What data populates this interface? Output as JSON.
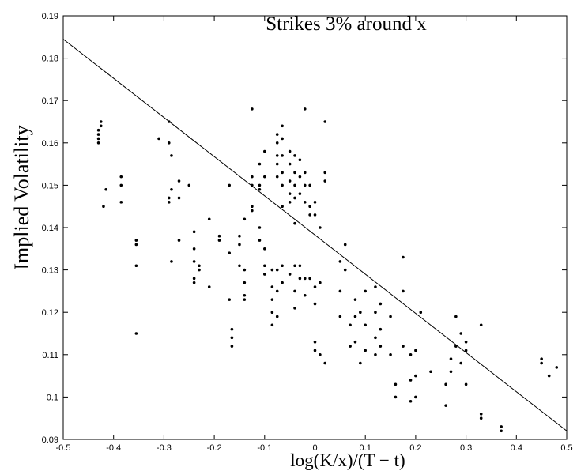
{
  "chart_data": {
    "type": "scatter",
    "title": "Strikes 3% around x",
    "x_label": "log(K/x)/(T − t)",
    "y_label": "Implied Volatility",
    "xlim": [
      -0.5,
      0.5
    ],
    "xticks": [
      -0.5,
      -0.4,
      -0.3,
      -0.2,
      -0.1,
      0,
      0.1,
      0.2,
      0.3,
      0.4,
      0.5
    ],
    "ylim": [
      0.09,
      0.19
    ],
    "yticks": [
      0.09,
      0.1,
      0.11,
      0.12,
      0.13,
      0.14,
      0.15,
      0.16,
      0.17,
      0.18,
      0.19
    ],
    "grid": false,
    "series": [
      {
        "type": "scatter",
        "color": "#000000",
        "x": [
          -0.43,
          -0.43,
          -0.43,
          -0.43,
          -0.425,
          -0.425,
          -0.42,
          -0.415,
          -0.385,
          -0.385,
          -0.385,
          -0.355,
          -0.355,
          -0.355,
          -0.355,
          -0.31,
          -0.29,
          -0.29,
          -0.29,
          -0.29,
          -0.285,
          -0.285,
          -0.285,
          -0.27,
          -0.27,
          -0.27,
          -0.25,
          -0.24,
          -0.24,
          -0.24,
          -0.24,
          -0.24,
          -0.23,
          -0.23,
          -0.21,
          -0.21,
          -0.19,
          -0.19,
          -0.17,
          -0.17,
          -0.17,
          -0.165,
          -0.165,
          -0.165,
          -0.15,
          -0.15,
          -0.15,
          -0.14,
          -0.14,
          -0.14,
          -0.14,
          -0.14,
          -0.125,
          -0.125,
          -0.125,
          -0.125,
          -0.125,
          -0.11,
          -0.11,
          -0.11,
          -0.11,
          -0.11,
          -0.1,
          -0.1,
          -0.1,
          -0.1,
          -0.1,
          -0.085,
          -0.085,
          -0.085,
          -0.085,
          -0.085,
          -0.075,
          -0.075,
          -0.075,
          -0.075,
          -0.075,
          -0.075,
          -0.075,
          -0.075,
          -0.065,
          -0.065,
          -0.065,
          -0.065,
          -0.065,
          -0.065,
          -0.065,
          -0.065,
          -0.05,
          -0.05,
          -0.05,
          -0.05,
          -0.05,
          -0.05,
          -0.04,
          -0.04,
          -0.04,
          -0.04,
          -0.04,
          -0.04,
          -0.04,
          -0.04,
          -0.03,
          -0.03,
          -0.03,
          -0.03,
          -0.03,
          -0.02,
          -0.02,
          -0.02,
          -0.02,
          -0.02,
          -0.02,
          -0.01,
          -0.01,
          -0.01,
          -0.01,
          0,
          0,
          0,
          0,
          0,
          0,
          0.01,
          0.01,
          0.01,
          0.02,
          0.02,
          0.02,
          0.02,
          0.05,
          0.05,
          0.05,
          0.06,
          0.06,
          0.07,
          0.07,
          0.08,
          0.08,
          0.08,
          0.09,
          0.09,
          0.1,
          0.1,
          0.1,
          0.12,
          0.12,
          0.12,
          0.12,
          0.13,
          0.13,
          0.13,
          0.15,
          0.15,
          0.16,
          0.16,
          0.175,
          0.175,
          0.175,
          0.19,
          0.19,
          0.19,
          0.2,
          0.2,
          0.2,
          0.21,
          0.23,
          0.26,
          0.26,
          0.27,
          0.27,
          0.28,
          0.28,
          0.29,
          0.29,
          0.3,
          0.3,
          0.3,
          0.33,
          0.33,
          0.33,
          0.37,
          0.37,
          0.45,
          0.45,
          0.465,
          0.48
        ],
        "values": [
          0.16,
          0.161,
          0.162,
          0.163,
          0.164,
          0.165,
          0.145,
          0.149,
          0.152,
          0.15,
          0.146,
          0.137,
          0.136,
          0.131,
          0.115,
          0.161,
          0.165,
          0.16,
          0.146,
          0.147,
          0.157,
          0.149,
          0.132,
          0.151,
          0.147,
          0.137,
          0.15,
          0.139,
          0.135,
          0.132,
          0.128,
          0.127,
          0.131,
          0.13,
          0.142,
          0.126,
          0.138,
          0.137,
          0.15,
          0.134,
          0.123,
          0.116,
          0.114,
          0.112,
          0.138,
          0.136,
          0.131,
          0.142,
          0.13,
          0.127,
          0.124,
          0.123,
          0.168,
          0.15,
          0.152,
          0.145,
          0.144,
          0.155,
          0.15,
          0.149,
          0.14,
          0.137,
          0.158,
          0.152,
          0.135,
          0.131,
          0.129,
          0.13,
          0.126,
          0.123,
          0.12,
          0.117,
          0.162,
          0.16,
          0.157,
          0.155,
          0.152,
          0.13,
          0.125,
          0.119,
          0.164,
          0.161,
          0.157,
          0.153,
          0.15,
          0.145,
          0.131,
          0.127,
          0.158,
          0.155,
          0.151,
          0.148,
          0.146,
          0.129,
          0.157,
          0.153,
          0.15,
          0.147,
          0.141,
          0.131,
          0.125,
          0.121,
          0.156,
          0.152,
          0.148,
          0.131,
          0.128,
          0.168,
          0.153,
          0.15,
          0.146,
          0.128,
          0.124,
          0.15,
          0.145,
          0.143,
          0.128,
          0.146,
          0.143,
          0.126,
          0.122,
          0.113,
          0.111,
          0.14,
          0.127,
          0.11,
          0.165,
          0.153,
          0.151,
          0.108,
          0.132,
          0.125,
          0.119,
          0.136,
          0.13,
          0.117,
          0.112,
          0.123,
          0.119,
          0.113,
          0.12,
          0.108,
          0.125,
          0.117,
          0.111,
          0.126,
          0.12,
          0.114,
          0.11,
          0.122,
          0.116,
          0.112,
          0.119,
          0.11,
          0.103,
          0.1,
          0.133,
          0.125,
          0.112,
          0.11,
          0.104,
          0.099,
          0.111,
          0.105,
          0.1,
          0.12,
          0.106,
          0.098,
          0.103,
          0.109,
          0.106,
          0.112,
          0.119,
          0.108,
          0.115,
          0.113,
          0.111,
          0.103,
          0.117,
          0.096,
          0.095,
          0.093,
          0.092,
          0.109,
          0.108,
          0.105,
          0.107
        ]
      },
      {
        "type": "line",
        "color": "#000000",
        "x": [
          -0.5,
          0.5
        ],
        "values": [
          0.1845,
          0.092
        ]
      }
    ]
  }
}
